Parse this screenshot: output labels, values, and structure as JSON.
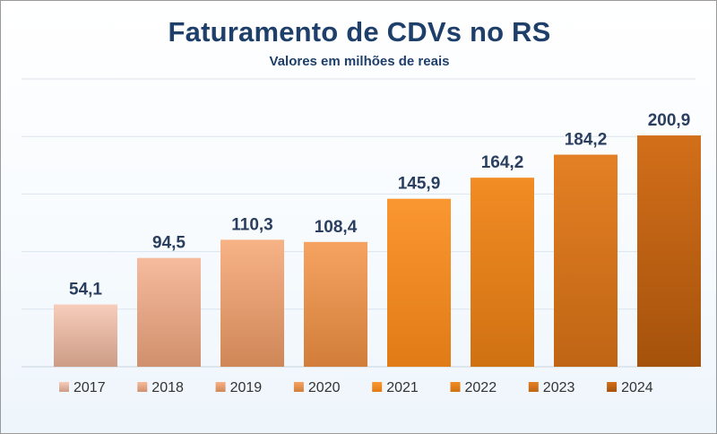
{
  "chart_data": {
    "type": "bar",
    "title": "Faturamento de CDVs no RS",
    "subtitle": "Valores em milhões de reais",
    "xlabel": "",
    "ylabel": "",
    "ylim": [
      0,
      250
    ],
    "grid": true,
    "legend_position": "bottom",
    "categories": [
      "2017",
      "2018",
      "2019",
      "2020",
      "2021",
      "2022",
      "2023",
      "2024"
    ],
    "values": [
      54.1,
      94.5,
      110.3,
      108.4,
      145.9,
      164.2,
      184.2,
      200.9
    ],
    "value_labels": [
      "54,1",
      "94,5",
      "110,3",
      "108,4",
      "145,9",
      "164,2",
      "184,2",
      "200,9"
    ],
    "series": [
      {
        "name": "2017",
        "value": 54.1,
        "color_top": "#f7cdbb",
        "color_bottom": "#cc9c86"
      },
      {
        "name": "2018",
        "value": 94.5,
        "color_top": "#f6bb9d",
        "color_bottom": "#d0906d"
      },
      {
        "name": "2019",
        "value": 110.3,
        "color_top": "#f7b286",
        "color_bottom": "#cf8758"
      },
      {
        "name": "2020",
        "value": 108.4,
        "color_top": "#f6a261",
        "color_bottom": "#d27e3a"
      },
      {
        "name": "2021",
        "value": 145.9,
        "color_top": "#fb9730",
        "color_bottom": "#e07b15"
      },
      {
        "name": "2022",
        "value": 164.2,
        "color_top": "#f28c24",
        "color_bottom": "#cf7112"
      },
      {
        "name": "2023",
        "value": 184.2,
        "color_top": "#e48024",
        "color_bottom": "#bf6514"
      },
      {
        "name": "2024",
        "value": 200.9,
        "color_top": "#d26f1a",
        "color_bottom": "#a5520c"
      }
    ],
    "colors": {
      "title": "#1f3f6b",
      "value_label": "#2a3f5f",
      "gridline": "#dbe4ee"
    }
  }
}
